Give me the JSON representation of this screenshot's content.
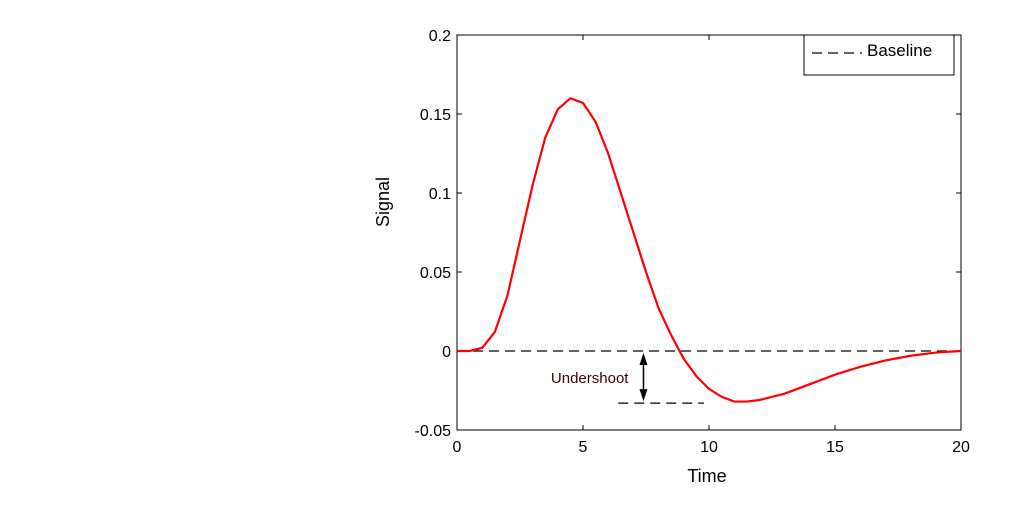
{
  "chart_data": {
    "type": "line",
    "title": "",
    "xlabel": "Time",
    "ylabel": "Signal",
    "xlim": [
      0,
      20
    ],
    "ylim": [
      -0.05,
      0.2
    ],
    "xticks": [
      0,
      5,
      10,
      15,
      20
    ],
    "xtick_labels": [
      "0",
      "5",
      "10",
      "15",
      "20"
    ],
    "yticks": [
      -0.05,
      0,
      0.05,
      0.1,
      0.15,
      0.2
    ],
    "ytick_labels": [
      "-0.05",
      "0",
      "0.05",
      "0.1",
      "0.15",
      "0.2"
    ],
    "grid": false,
    "legend": {
      "placement": "top-right",
      "entries": [
        {
          "label": "Baseline",
          "style": "dashed",
          "color": "#000000"
        }
      ]
    },
    "series": [
      {
        "color": "#ff0000",
        "x": [
          0,
          0.5,
          1,
          1.5,
          2,
          2.5,
          3,
          3.5,
          4,
          4.5,
          5,
          5.5,
          6,
          6.5,
          7,
          7.5,
          8,
          8.5,
          9,
          9.5,
          10,
          10.5,
          11,
          11.5,
          12,
          13,
          14,
          15,
          16,
          17,
          18,
          19,
          20
        ],
        "y": [
          0,
          0,
          0.002,
          0.012,
          0.035,
          0.07,
          0.105,
          0.135,
          0.153,
          0.16,
          0.157,
          0.145,
          0.125,
          0.1,
          0.075,
          0.05,
          0.027,
          0.01,
          -0.005,
          -0.016,
          -0.024,
          -0.029,
          -0.032,
          -0.032,
          -0.031,
          -0.027,
          -0.021,
          -0.015,
          -0.01,
          -0.006,
          -0.003,
          -0.001,
          0
        ]
      }
    ],
    "baseline": {
      "y": 0,
      "x": [
        0,
        20
      ]
    },
    "annotations": [
      {
        "text": "Undershoot",
        "color": "#400000",
        "arrow_x": 7.4,
        "from_y": 0,
        "to_y": -0.033,
        "undershoot_line": {
          "y": -0.033,
          "x": [
            6.4,
            9.8
          ]
        }
      }
    ]
  }
}
